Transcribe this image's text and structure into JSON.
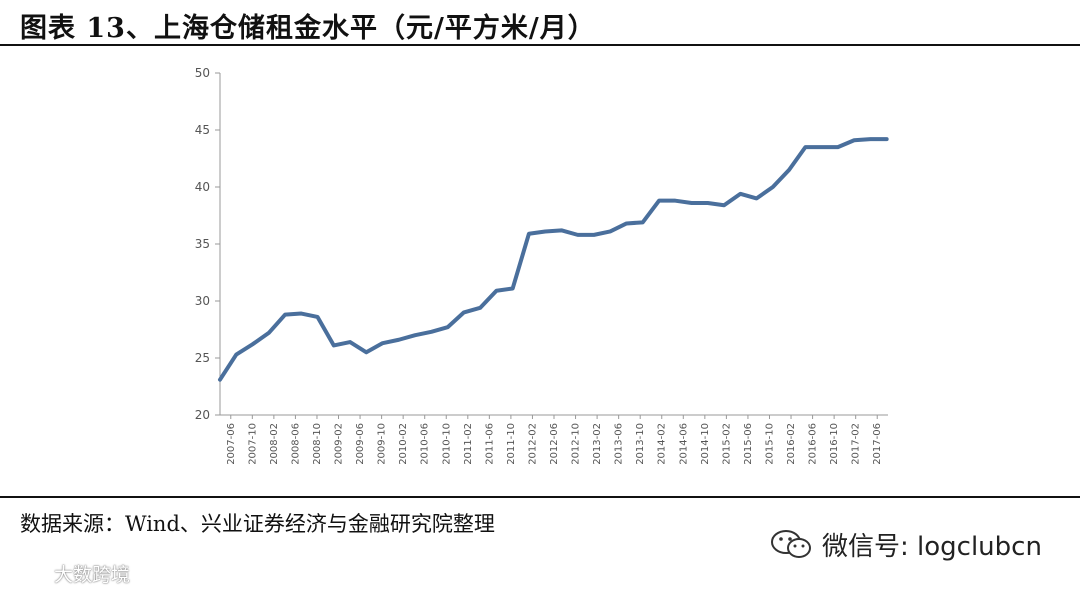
{
  "header": {
    "title": "图表 13、上海仓储租金水平（元/平方米/月）"
  },
  "footer": {
    "source": "数据来源：Wind、兴业证券经济与金融研究院整理",
    "wechat": "微信号: logclubcn",
    "wechat_icon": "wechat-icon",
    "brand": "大数跨境",
    "brand_icon": "brand-logo-icon"
  },
  "chart_data": {
    "type": "line",
    "title": "",
    "xlabel": "",
    "ylabel": "",
    "ylim": [
      20,
      50
    ],
    "yticks": [
      20,
      25,
      30,
      35,
      40,
      45,
      50
    ],
    "grid": false,
    "legend": "none",
    "line_color": "#4a6f9c",
    "xtick_labels": [
      "2007-06",
      "2007-10",
      "2008-02",
      "2008-06",
      "2008-10",
      "2009-02",
      "2009-06",
      "2009-10",
      "2010-02",
      "2010-06",
      "2010-10",
      "2011-02",
      "2011-06",
      "2011-10",
      "2012-02",
      "2012-06",
      "2012-10",
      "2013-02",
      "2013-06",
      "2013-10",
      "2014-02",
      "2014-06",
      "2014-10",
      "2015-02",
      "2015-06",
      "2015-10",
      "2016-02",
      "2016-06",
      "2016-10",
      "2017-02",
      "2017-06"
    ],
    "series": [
      {
        "values": [
          23.1,
          25.3,
          26.2,
          27.2,
          28.8,
          28.9,
          28.6,
          26.1,
          26.4,
          25.5,
          26.3,
          26.6,
          27.0,
          27.3,
          27.7,
          29.0,
          29.4,
          30.9,
          31.1,
          35.9,
          36.1,
          36.2,
          35.8,
          35.8,
          36.1,
          36.8,
          36.9,
          38.8,
          38.8,
          38.6,
          38.6,
          38.4,
          39.4,
          39.0,
          40.0,
          41.5,
          43.5,
          43.5,
          43.5,
          44.1,
          44.2,
          44.2
        ]
      }
    ]
  }
}
